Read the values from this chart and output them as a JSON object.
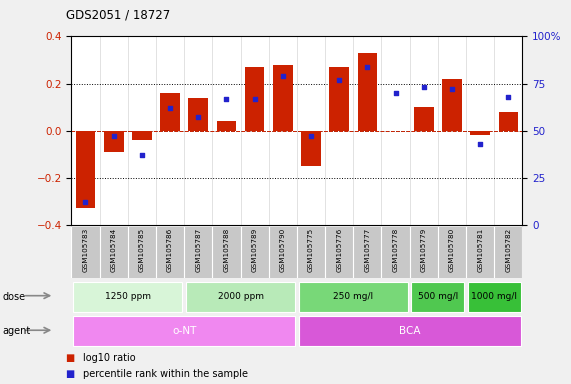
{
  "title": "GDS2051 / 18727",
  "samples": [
    "GSM105783",
    "GSM105784",
    "GSM105785",
    "GSM105786",
    "GSM105787",
    "GSM105788",
    "GSM105789",
    "GSM105790",
    "GSM105775",
    "GSM105776",
    "GSM105777",
    "GSM105778",
    "GSM105779",
    "GSM105780",
    "GSM105781",
    "GSM105782"
  ],
  "log10_ratio": [
    -0.33,
    -0.09,
    -0.04,
    0.16,
    0.14,
    0.04,
    0.27,
    0.28,
    -0.15,
    0.27,
    0.33,
    0.0,
    0.1,
    0.22,
    -0.02,
    0.08
  ],
  "percentile_rank": [
    12,
    47,
    37,
    62,
    57,
    67,
    67,
    79,
    47,
    77,
    84,
    70,
    73,
    72,
    43,
    68
  ],
  "bar_color": "#cc2200",
  "dot_color": "#2222cc",
  "ylim": [
    -0.4,
    0.4
  ],
  "y2lim": [
    0,
    100
  ],
  "yticks": [
    -0.4,
    -0.2,
    0.0,
    0.2,
    0.4
  ],
  "y2ticks": [
    0,
    25,
    50,
    75,
    100
  ],
  "dose_groups": [
    {
      "label": "1250 ppm",
      "start": 0,
      "end": 4,
      "color": "#d8f5d8"
    },
    {
      "label": "2000 ppm",
      "start": 4,
      "end": 8,
      "color": "#b8eab8"
    },
    {
      "label": "250 mg/l",
      "start": 8,
      "end": 12,
      "color": "#78d878"
    },
    {
      "label": "500 mg/l",
      "start": 12,
      "end": 14,
      "color": "#50c850"
    },
    {
      "label": "1000 mg/l",
      "start": 14,
      "end": 16,
      "color": "#38c038"
    }
  ],
  "agent_groups": [
    {
      "label": "o-NT",
      "start": 0,
      "end": 8,
      "color": "#f088f0"
    },
    {
      "label": "BCA",
      "start": 8,
      "end": 16,
      "color": "#d858d8"
    }
  ],
  "legend_bar_label": "log10 ratio",
  "legend_dot_label": "percentile rank within the sample",
  "fig_bg": "#f0f0f0",
  "plot_bg": "#ffffff",
  "dose_label": "dose",
  "agent_label": "agent",
  "label_row_bg": "#c8c8c8"
}
